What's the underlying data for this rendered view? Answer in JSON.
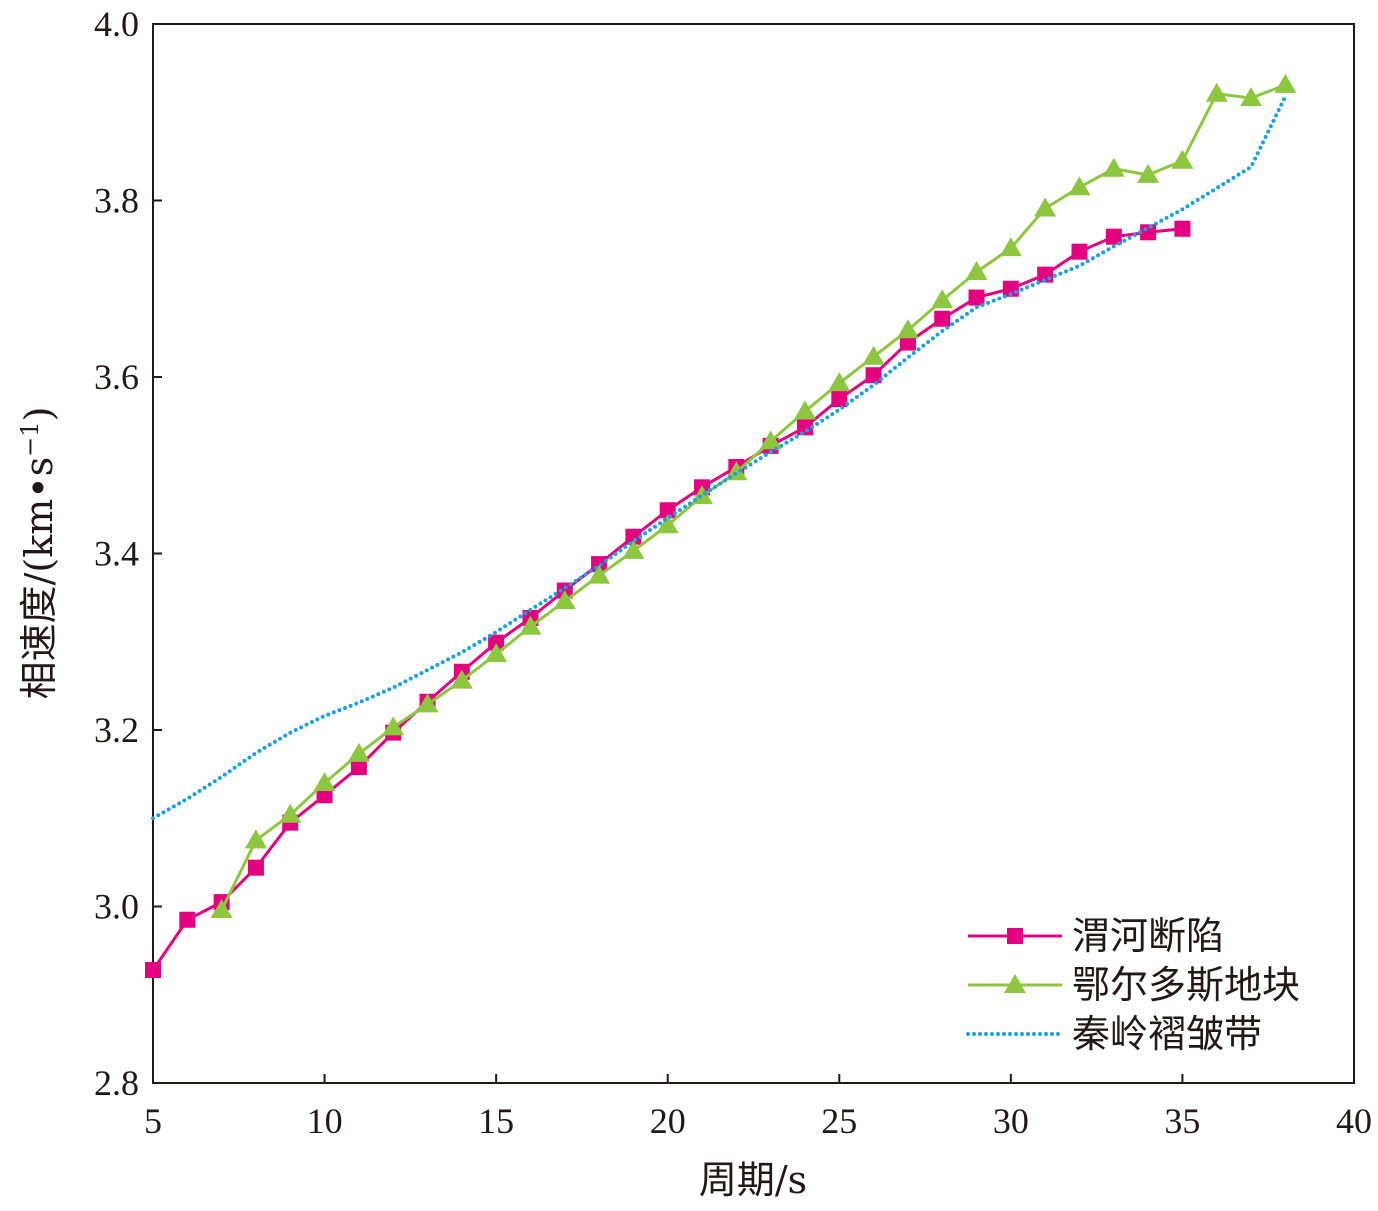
{
  "chart_data": {
    "type": "line",
    "title": "",
    "xlabel": "周期/s",
    "ylabel": {
      "main": "相速度/(km•s",
      "sup": "−1",
      "close": ")"
    },
    "xlim": [
      5,
      40
    ],
    "ylim": [
      2.8,
      4.0
    ],
    "xticks": [
      "5",
      "10",
      "15",
      "20",
      "25",
      "30",
      "35",
      "40"
    ],
    "yticks": [
      "2.8",
      "3.0",
      "3.2",
      "3.4",
      "3.6",
      "3.8",
      "4.0"
    ],
    "grid": false,
    "legend_position": "bottom-right",
    "series": [
      {
        "name": "渭河断陷",
        "color": "#e4007f",
        "marker": "square",
        "style": "solid",
        "x": [
          5,
          6,
          7,
          8,
          9,
          10,
          11,
          12,
          13,
          14,
          15,
          16,
          17,
          18,
          19,
          20,
          21,
          22,
          23,
          24,
          25,
          26,
          27,
          28,
          29,
          30,
          31,
          32,
          33,
          34,
          35
        ],
        "y": [
          2.928,
          2.985,
          3.005,
          3.044,
          3.095,
          3.126,
          3.158,
          3.197,
          3.232,
          3.266,
          3.299,
          3.327,
          3.358,
          3.388,
          3.419,
          3.449,
          3.475,
          3.498,
          3.522,
          3.543,
          3.575,
          3.602,
          3.639,
          3.666,
          3.69,
          3.7,
          3.716,
          3.742,
          3.759,
          3.764,
          3.768
        ]
      },
      {
        "name": "鄂尔多斯地块",
        "color": "#8dc63f",
        "marker": "triangle",
        "style": "solid",
        "x": [
          7,
          8,
          9,
          10,
          11,
          12,
          13,
          14,
          15,
          16,
          17,
          18,
          19,
          20,
          21,
          22,
          23,
          24,
          25,
          26,
          27,
          28,
          29,
          30,
          31,
          32,
          33,
          34,
          35,
          36,
          37,
          38
        ],
        "y": [
          2.996,
          3.075,
          3.104,
          3.14,
          3.173,
          3.203,
          3.229,
          3.256,
          3.286,
          3.317,
          3.346,
          3.375,
          3.403,
          3.432,
          3.465,
          3.492,
          3.527,
          3.561,
          3.593,
          3.623,
          3.653,
          3.687,
          3.719,
          3.746,
          3.791,
          3.815,
          3.836,
          3.829,
          3.845,
          3.921,
          3.916,
          3.931
        ]
      },
      {
        "name": "秦岭褶皱带",
        "color": "#1ba1e2",
        "marker": "none",
        "style": "dotted",
        "x": [
          5,
          6,
          7,
          8,
          9,
          10,
          11,
          12,
          13,
          14,
          15,
          16,
          17,
          18,
          19,
          20,
          21,
          22,
          23,
          24,
          25,
          26,
          27,
          28,
          29,
          30,
          31,
          32,
          33,
          34,
          35,
          36,
          37,
          38
        ],
        "y": [
          3.1,
          3.122,
          3.147,
          3.174,
          3.197,
          3.216,
          3.231,
          3.248,
          3.268,
          3.288,
          3.311,
          3.336,
          3.361,
          3.386,
          3.414,
          3.44,
          3.466,
          3.491,
          3.515,
          3.538,
          3.563,
          3.591,
          3.622,
          3.652,
          3.679,
          3.694,
          3.71,
          3.726,
          3.748,
          3.769,
          3.79,
          3.814,
          3.838,
          3.918
        ]
      }
    ]
  }
}
